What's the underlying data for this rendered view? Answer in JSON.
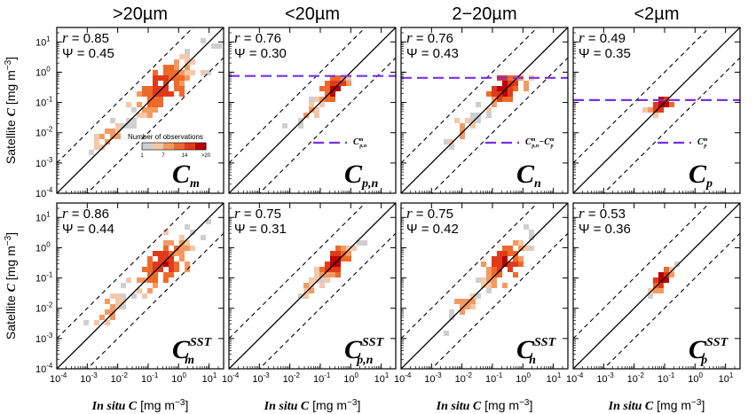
{
  "chart_data": {
    "type": "heatmap",
    "description_type": "2D histogram scatter panels (log-log)",
    "column_titles": [
      ">20µm",
      "<20µm",
      "2−20µm",
      "<2µm"
    ],
    "row_labels": {
      "ylabel_main": "Satellite ",
      "ylabel_var": "C",
      "ylabel_units": " [mg m",
      "ylabel_exp": "−3",
      "ylabel_close": "]"
    },
    "xlabel": {
      "ital": "In situ C",
      "units": " [mg m",
      "exp": "−3",
      "close": "]"
    },
    "axis_range": {
      "x": [
        0.0001,
        30
      ],
      "y": [
        0.0001,
        30
      ],
      "scale": "log"
    },
    "tick_labels": [
      {
        "base": "10",
        "exp": "-4"
      },
      {
        "base": "10",
        "exp": "-3"
      },
      {
        "base": "10",
        "exp": "-2"
      },
      {
        "base": "10",
        "exp": "-1"
      },
      {
        "base": "10",
        "exp": "0"
      },
      {
        "base": "10",
        "exp": "1"
      }
    ],
    "stat_labels": {
      "r": "r",
      "psi": "Ψ",
      "eq": " = "
    },
    "colorbar": {
      "title": "Number of observations",
      "ticks": [
        "1",
        "7",
        "14",
        ">20"
      ],
      "colors": [
        "#cfcfcf",
        "#f4c8a8",
        "#f39a62",
        "#ee6a2a",
        "#e03a1a",
        "#b80000"
      ]
    },
    "one_to_one_line": {
      "slope": 1,
      "dashed_offset_factor": 10
    },
    "panels": [
      {
        "row": 0,
        "col": 0,
        "r": "0.85",
        "psi": "0.45",
        "label_main": "C",
        "label_sub": "m",
        "label_sup": "",
        "show_colorbar": true,
        "threshold": null,
        "threshold_label": "",
        "blobs": [
          {
            "x": 0.3,
            "y": 0.3,
            "spread": 1.2,
            "n": 110,
            "peak": 0.85
          },
          {
            "x": 0.005,
            "y": 0.008,
            "spread": 0.6,
            "n": 22,
            "peak": 0.5
          }
        ]
      },
      {
        "row": 0,
        "col": 1,
        "r": "0.76",
        "psi": "0.30",
        "label_main": "C",
        "label_sub": "p,n",
        "label_sup": "",
        "show_colorbar": false,
        "threshold": 0.75,
        "threshold_label": {
          "main": "C",
          "sup": "m",
          "sub": "p,n",
          "extra": ""
        },
        "blobs": [
          {
            "x": 0.3,
            "y": 0.3,
            "spread": 0.55,
            "n": 70,
            "peak": 1.0
          },
          {
            "x": 0.05,
            "y": 0.05,
            "spread": 0.4,
            "n": 14,
            "peak": 0.45
          }
        ]
      },
      {
        "row": 0,
        "col": 2,
        "r": "0.76",
        "psi": "0.43",
        "label_main": "C",
        "label_sub": "n",
        "label_sup": "",
        "show_colorbar": false,
        "threshold": 0.65,
        "threshold_label": {
          "main": "C",
          "sup": "m",
          "sub": "p,n",
          "extra": "−C",
          "extra_sup": "m",
          "extra_sub": "p"
        },
        "blobs": [
          {
            "x": 0.25,
            "y": 0.3,
            "spread": 0.8,
            "n": 80,
            "peak": 0.95
          },
          {
            "x": 0.01,
            "y": 0.012,
            "spread": 0.5,
            "n": 16,
            "peak": 0.5
          }
        ]
      },
      {
        "row": 0,
        "col": 3,
        "r": "0.49",
        "psi": "0.35",
        "label_main": "C",
        "label_sub": "p",
        "label_sup": "",
        "show_colorbar": false,
        "threshold": 0.12,
        "threshold_label": {
          "main": "C",
          "sup": "m",
          "sub": "p",
          "extra": ""
        },
        "blobs": [
          {
            "x": 0.08,
            "y": 0.09,
            "spread": 0.45,
            "n": 40,
            "peak": 1.0
          }
        ]
      },
      {
        "row": 1,
        "col": 0,
        "r": "0.86",
        "psi": "0.44",
        "label_main": "C",
        "label_sub": "m",
        "label_sup": "SST",
        "show_colorbar": false,
        "threshold": null,
        "threshold_label": "",
        "blobs": [
          {
            "x": 0.3,
            "y": 0.3,
            "spread": 1.1,
            "n": 110,
            "peak": 0.85
          },
          {
            "x": 0.005,
            "y": 0.008,
            "spread": 0.6,
            "n": 22,
            "peak": 0.5
          }
        ]
      },
      {
        "row": 1,
        "col": 1,
        "r": "0.75",
        "psi": "0.31",
        "label_main": "C",
        "label_sub": "p,n",
        "label_sup": "SST",
        "show_colorbar": false,
        "threshold": null,
        "threshold_label": "",
        "blobs": [
          {
            "x": 0.3,
            "y": 0.35,
            "spread": 0.6,
            "n": 70,
            "peak": 1.0
          },
          {
            "x": 0.05,
            "y": 0.05,
            "spread": 0.35,
            "n": 12,
            "peak": 0.45
          }
        ]
      },
      {
        "row": 1,
        "col": 2,
        "r": "0.75",
        "psi": "0.42",
        "label_main": "C",
        "label_sub": "n",
        "label_sup": "SST",
        "show_colorbar": false,
        "threshold": null,
        "threshold_label": "",
        "blobs": [
          {
            "x": 0.25,
            "y": 0.3,
            "spread": 0.8,
            "n": 80,
            "peak": 0.95
          },
          {
            "x": 0.012,
            "y": 0.012,
            "spread": 0.5,
            "n": 16,
            "peak": 0.5
          }
        ]
      },
      {
        "row": 1,
        "col": 3,
        "r": "0.53",
        "psi": "0.36",
        "label_main": "C",
        "label_sub": "p",
        "label_sup": "SST",
        "show_colorbar": false,
        "threshold": null,
        "threshold_label": "",
        "blobs": [
          {
            "x": 0.08,
            "y": 0.09,
            "spread": 0.45,
            "n": 45,
            "peak": 1.0
          }
        ]
      }
    ]
  }
}
